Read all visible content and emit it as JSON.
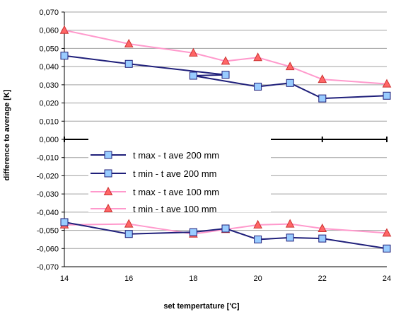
{
  "chart_data": {
    "type": "line",
    "title": "",
    "xlabel": "set tempertature ['C]",
    "ylabel": "difference to average [K]",
    "xlim": [
      14,
      24
    ],
    "ylim": [
      -0.07,
      0.07
    ],
    "x_ticks": [
      "14",
      "16",
      "18",
      "20",
      "22",
      "24"
    ],
    "y_ticks": [
      "0,070",
      "0,060",
      "0,050",
      "0,040",
      "0,030",
      "0,020",
      "0,010",
      "0,000",
      "-0,010",
      "-0,020",
      "-0,030",
      "-0,040",
      "-0,050",
      "-0,060",
      "-0,070"
    ],
    "grid": true,
    "legend_position": "center",
    "series": [
      {
        "name": "t max - t ave 200 mm",
        "color": "#1f1f7a",
        "marker": "square",
        "marker_fill": "#99ccff",
        "x": [
          14,
          16,
          19,
          18,
          20,
          21,
          22,
          24
        ],
        "y": [
          0.046,
          0.0415,
          0.0355,
          0.035,
          0.029,
          0.031,
          0.0225,
          0.024
        ]
      },
      {
        "name": "t min - t ave 200 mm",
        "color": "#1f1f7a",
        "marker": "square",
        "marker_fill": "#99ccff",
        "x": [
          14,
          16,
          18,
          19,
          20,
          21,
          22,
          24
        ],
        "y": [
          -0.0455,
          -0.052,
          -0.051,
          -0.049,
          -0.055,
          -0.054,
          -0.0545,
          -0.06
        ]
      },
      {
        "name": "t max - t ave 100 mm",
        "color": "#ff99cc",
        "marker": "triangle",
        "marker_fill": "#ff6666",
        "x": [
          14,
          16,
          18,
          19,
          20,
          21,
          22,
          24
        ],
        "y": [
          0.06,
          0.0525,
          0.0475,
          0.043,
          0.045,
          0.04,
          0.033,
          0.0305
        ]
      },
      {
        "name": "t min - t ave 100 mm",
        "color": "#ff99cc",
        "marker": "triangle",
        "marker_fill": "#ff6666",
        "x": [
          14,
          16,
          18,
          19,
          20,
          21,
          22,
          24
        ],
        "y": [
          -0.047,
          -0.0465,
          -0.052,
          -0.0495,
          -0.047,
          -0.0465,
          -0.049,
          -0.0515
        ]
      }
    ]
  }
}
